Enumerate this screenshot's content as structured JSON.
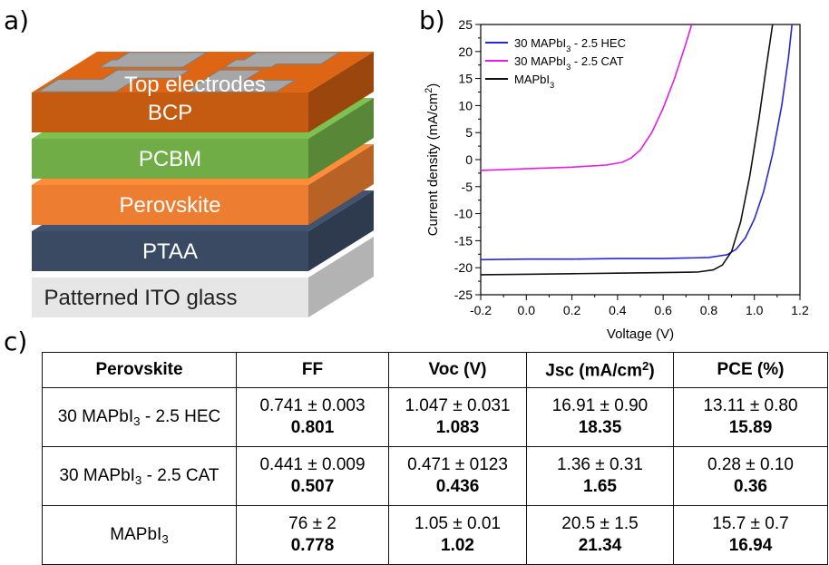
{
  "panel_labels": {
    "a": "a)",
    "b": "b)",
    "c": "c)"
  },
  "stack": {
    "layers": [
      {
        "key": "ito",
        "label": "Patterned ITO glass",
        "color": "#e6e6e6"
      },
      {
        "key": "ptaa",
        "label": "PTAA",
        "color": "#3b4a63"
      },
      {
        "key": "perovskite",
        "label": "Perovskite",
        "color": "#ed7d31"
      },
      {
        "key": "pcbm",
        "label": "PCBM",
        "color": "#70ad47"
      },
      {
        "key": "bcp",
        "label": "BCP",
        "color": "#c55a11"
      }
    ],
    "electrodes_label": "Top electrodes",
    "electrode_color": "#a6a6a6"
  },
  "chart_data": {
    "type": "line",
    "xlabel": "Voltage (V)",
    "ylabel": {
      "prefix": "Current density (mA/cm",
      "sup": "2",
      "suffix": ")"
    },
    "xlim": [
      -0.2,
      1.2
    ],
    "ylim": [
      -25,
      25
    ],
    "xticks": [
      "-0.2",
      "0.0",
      "0.2",
      "0.4",
      "0.6",
      "0.8",
      "1.0",
      "1.2"
    ],
    "yticks": [
      "-25",
      "-20",
      "-15",
      "-10",
      "-5",
      "0",
      "5",
      "10",
      "15",
      "20",
      "25"
    ],
    "legend_position": "top-left",
    "series": [
      {
        "name": {
          "a": "30 MAPbI",
          "sub": "3",
          "b": " - 2.5 HEC"
        },
        "color": "#2727d6",
        "x": [
          -0.2,
          0.0,
          0.2,
          0.4,
          0.6,
          0.8,
          0.88,
          0.92,
          0.96,
          1.0,
          1.04,
          1.08,
          1.12,
          1.15,
          1.165
        ],
        "y": [
          -18.5,
          -18.4,
          -18.4,
          -18.3,
          -18.3,
          -18.1,
          -17.6,
          -16.6,
          -14.5,
          -11.0,
          -6.0,
          1.0,
          10.0,
          19.0,
          25.0
        ]
      },
      {
        "name": {
          "a": "30 MAPbI",
          "sub": "3",
          "b": " - 2.5 CAT"
        },
        "color": "#e61ce6",
        "x": [
          -0.2,
          0.0,
          0.2,
          0.35,
          0.42,
          0.46,
          0.5,
          0.55,
          0.6,
          0.65,
          0.7,
          0.725
        ],
        "y": [
          -2.0,
          -1.7,
          -1.4,
          -1.0,
          -0.5,
          0.3,
          1.8,
          5.0,
          9.5,
          15.0,
          21.5,
          25.0
        ]
      },
      {
        "name": {
          "a": "MAPbI",
          "sub": "3",
          "b": ""
        },
        "color": "#111111",
        "x": [
          -0.2,
          0.0,
          0.2,
          0.4,
          0.6,
          0.75,
          0.82,
          0.86,
          0.9,
          0.94,
          0.98,
          1.02,
          1.05,
          1.08
        ],
        "y": [
          -21.3,
          -21.2,
          -21.1,
          -21.0,
          -20.9,
          -20.8,
          -20.4,
          -19.5,
          -17.0,
          -11.5,
          -3.0,
          7.5,
          16.5,
          25.0
        ]
      }
    ]
  },
  "table": {
    "headers": [
      {
        "a": "Perovskite"
      },
      {
        "a": "FF"
      },
      {
        "a": "Voc (V)"
      },
      {
        "a": "Jsc (mA/cm",
        "sup": "2",
        "b": ")"
      },
      {
        "a": "PCE (%)"
      }
    ],
    "rows": [
      {
        "name": {
          "a": "30 MAPbI",
          "sub": "3",
          "b": " - 2.5 HEC"
        },
        "cells": [
          {
            "mean": "0.741 ± 0.003",
            "best": "0.801"
          },
          {
            "mean": "1.047 ± 0.031",
            "best": "1.083"
          },
          {
            "mean": "16.91 ± 0.90",
            "best": "18.35"
          },
          {
            "mean": "13.11 ± 0.80",
            "best": "15.89"
          }
        ]
      },
      {
        "name": {
          "a": "30 MAPbI",
          "sub": "3",
          "b": " - 2.5 CAT"
        },
        "cells": [
          {
            "mean": "0.441 ± 0.009",
            "best": "0.507"
          },
          {
            "mean": "0.471 ± 0123",
            "best": "0.436"
          },
          {
            "mean": "1.36 ± 0.31",
            "best": "1.65"
          },
          {
            "mean": "0.28 ±  0.10",
            "best": "0.36"
          }
        ]
      },
      {
        "name": {
          "a": "MAPbI",
          "sub": "3",
          "b": ""
        },
        "cells": [
          {
            "mean": "76 ± 2",
            "best": "0.778"
          },
          {
            "mean": "1.05 ± 0.01",
            "best": "1.02"
          },
          {
            "mean": "20.5 ± 1.5",
            "best": "21.34"
          },
          {
            "mean": "15.7 ± 0.7",
            "best": "16.94"
          }
        ]
      }
    ]
  }
}
